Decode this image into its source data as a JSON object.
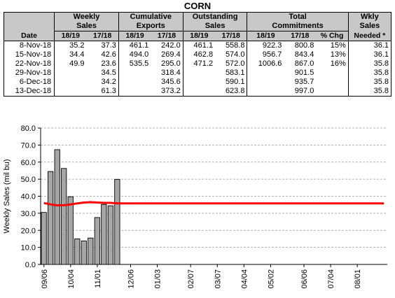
{
  "title": "CORN",
  "table": {
    "groups": [
      {
        "label": "",
        "sub": "Date"
      },
      {
        "label": "Weekly Sales",
        "cols": [
          "18/19",
          "17/18"
        ]
      },
      {
        "label": "Cumulative Exports",
        "cols": [
          "18/19",
          "17/18"
        ]
      },
      {
        "label": "Outstanding Sales",
        "cols": [
          "18/19",
          "17/18"
        ]
      },
      {
        "label": "Total Commitments",
        "cols": [
          "18/19",
          "17/18",
          "% Chg"
        ]
      },
      {
        "label": "Wkly Sales Needed *",
        "cols": []
      }
    ],
    "group_line1": {
      "weekly": "Weekly",
      "cumulative": "Cumulative",
      "outstanding": "Outstanding",
      "total": "Total",
      "needed": "Wkly"
    },
    "group_line2": {
      "weekly": "Sales",
      "cumulative": "Exports",
      "outstanding": "Sales",
      "total": "Commitments",
      "needed": "Sales"
    },
    "date_header": "Date",
    "needed_line3": "Needed *",
    "sub": {
      "ws1": "18/19",
      "ws2": "17/18",
      "ce1": "18/19",
      "ce2": "17/18",
      "os1": "18/19",
      "os2": "17/18",
      "tc1": "18/19",
      "tc2": "17/18",
      "chg": "% Chg"
    },
    "rows": [
      {
        "date": "8-Nov-18",
        "ws1": "35.2",
        "ws2": "37.3",
        "ce1": "461.1",
        "ce2": "242.0",
        "os1": "461.1",
        "os2": "558.8",
        "tc1": "922.3",
        "tc2": "800.8",
        "chg": "15%",
        "need": "36.1"
      },
      {
        "date": "15-Nov-18",
        "ws1": "34.4",
        "ws2": "42.6",
        "ce1": "494.0",
        "ce2": "269.4",
        "os1": "462.8",
        "os2": "574.0",
        "tc1": "956.7",
        "tc2": "843.4",
        "chg": "13%",
        "need": "36.1"
      },
      {
        "date": "22-Nov-18",
        "ws1": "49.9",
        "ws2": "23.6",
        "ce1": "535.5",
        "ce2": "295.0",
        "os1": "471.2",
        "os2": "572.0",
        "tc1": "1006.6",
        "tc2": "867.0",
        "chg": "16%",
        "need": "35.8"
      },
      {
        "date": "29-Nov-18",
        "ws1": "",
        "ws2": "34.5",
        "ce1": "",
        "ce2": "318.4",
        "os1": "",
        "os2": "583.1",
        "tc1": "",
        "tc2": "901.5",
        "chg": "",
        "need": "35.8"
      },
      {
        "date": "6-Dec-18",
        "ws1": "",
        "ws2": "34.2",
        "ce1": "",
        "ce2": "345.6",
        "os1": "",
        "os2": "590.1",
        "tc1": "",
        "tc2": "935.7",
        "chg": "",
        "need": "35.8"
      },
      {
        "date": "13-Dec-18",
        "ws1": "",
        "ws2": "61.3",
        "ce1": "",
        "ce2": "373.2",
        "os1": "",
        "os2": "623.8",
        "tc1": "",
        "tc2": "997.0",
        "chg": "",
        "need": "35.8"
      }
    ]
  },
  "chart_data": {
    "type": "bar",
    "ylabel": "Weekly Sales (mil bu)",
    "xlabel": "",
    "ylim": [
      0,
      80
    ],
    "yticks": [
      "0.0",
      "10.0",
      "20.0",
      "30.0",
      "40.0",
      "50.0",
      "60.0",
      "70.0",
      "80.0"
    ],
    "xticks": [
      "09/06",
      "10/04",
      "11/01",
      "12/06",
      "01/03",
      "02/07",
      "03/07",
      "04/04",
      "05/02",
      "06/06",
      "07/04",
      "08/01"
    ],
    "tick_week_index": [
      0,
      4,
      8,
      13,
      17,
      22,
      26,
      30,
      34,
      39,
      43,
      47
    ],
    "total_weeks": 52,
    "grid": "horizontal dashed",
    "bar_color": "#a6a6a6",
    "line_color": "#ff0000",
    "series": [
      {
        "type": "bar",
        "values": [
          30.5,
          54.5,
          67.3,
          56.3,
          39.7,
          15.0,
          13.8,
          15.5,
          27.5,
          35.2,
          34.4,
          49.9
        ]
      },
      {
        "type": "line",
        "values": [
          36.0,
          35.2,
          34.6,
          34.7,
          35.2,
          35.8,
          36.3,
          36.5,
          36.3,
          36.1,
          36.1,
          35.8,
          35.8,
          35.8,
          35.8,
          35.8,
          35.8,
          35.8,
          35.8,
          35.8,
          35.8,
          35.8,
          35.8,
          35.8,
          35.8,
          35.8,
          35.8,
          35.8,
          35.8,
          35.8,
          35.8,
          35.8,
          35.8,
          35.8,
          35.8,
          35.8,
          35.8,
          35.8,
          35.8,
          35.8,
          35.8,
          35.8,
          35.8,
          35.8,
          35.8,
          35.8,
          35.8,
          35.8,
          35.8,
          35.8,
          35.8,
          35.8
        ]
      }
    ]
  }
}
